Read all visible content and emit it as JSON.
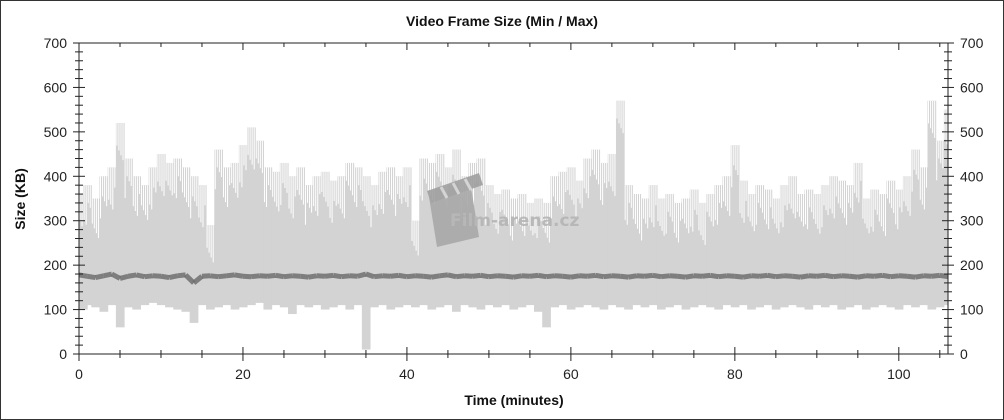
{
  "chart_data": {
    "type": "area",
    "title": "Video Frame Size (Min / Max)",
    "xlabel": "Time (minutes)",
    "ylabel": "Size (KB)",
    "xlim": [
      0,
      106
    ],
    "ylim": [
      0,
      700
    ],
    "x_ticks": [
      0,
      20,
      40,
      60,
      80,
      100
    ],
    "y_ticks": [
      0,
      100,
      200,
      300,
      400,
      500,
      600,
      700
    ],
    "grid": false,
    "legend": "none",
    "watermark": "Film-arena.cz",
    "colors": {
      "range": "#d3d3d3",
      "line": "#6e6e6e"
    },
    "series": [
      {
        "role": "max",
        "values": [
          360,
          380,
          350,
          400,
          420,
          520,
          440,
          400,
          380,
          420,
          450,
          430,
          440,
          420,
          400,
          380,
          290,
          460,
          420,
          430,
          470,
          510,
          480,
          420,
          410,
          430,
          400,
          420,
          380,
          400,
          410,
          390,
          400,
          430,
          420,
          400,
          380,
          410,
          420,
          400,
          420,
          300,
          440,
          430,
          450,
          420,
          460,
          400,
          430,
          440,
          380,
          360,
          370,
          350,
          360,
          340,
          350,
          340,
          400,
          410,
          420,
          390,
          440,
          460,
          430,
          450,
          570,
          380,
          360,
          350,
          380,
          350,
          360,
          340,
          350,
          370,
          340,
          360,
          380,
          400,
          470,
          390,
          360,
          380,
          370,
          350,
          380,
          400,
          360,
          370,
          360,
          380,
          400,
          390,
          380,
          430,
          350,
          370,
          360,
          390,
          370,
          400,
          460,
          420,
          570,
          480,
          550
        ]
      },
      {
        "role": "min",
        "values": [
          100,
          110,
          105,
          95,
          110,
          60,
          105,
          100,
          110,
          115,
          110,
          105,
          100,
          95,
          70,
          110,
          100,
          105,
          110,
          100,
          105,
          110,
          115,
          100,
          110,
          105,
          90,
          110,
          105,
          110,
          100,
          105,
          110,
          100,
          110,
          10,
          105,
          110,
          100,
          105,
          110,
          105,
          110,
          100,
          105,
          110,
          95,
          110,
          105,
          100,
          110,
          105,
          110,
          100,
          105,
          110,
          95,
          60,
          105,
          110,
          100,
          105,
          110,
          105,
          100,
          110,
          105,
          100,
          110,
          105,
          110,
          100,
          105,
          110,
          100,
          105,
          110,
          105,
          100,
          110,
          105,
          110,
          100,
          105,
          110,
          100,
          105,
          110,
          105,
          100,
          110,
          105,
          110,
          100,
          105,
          110,
          100,
          105,
          110,
          105,
          100,
          110,
          105,
          110,
          100,
          105,
          110
        ]
      },
      {
        "values": [
          178,
          175,
          172,
          176,
          180,
          170,
          175,
          178,
          174,
          176,
          175,
          172,
          176,
          178,
          160,
          175,
          176,
          174,
          176,
          178,
          175,
          174,
          176,
          175,
          177,
          174,
          176,
          175,
          173,
          176,
          175,
          177,
          174,
          176,
          175,
          180,
          174,
          176,
          175,
          177,
          174,
          176,
          175,
          173,
          176,
          178,
          174,
          176,
          175,
          177,
          174,
          176,
          175,
          173,
          176,
          175,
          177,
          174,
          176,
          175,
          173,
          176,
          175,
          177,
          174,
          176,
          175,
          173,
          176,
          175,
          177,
          174,
          176,
          175,
          173,
          176,
          175,
          177,
          174,
          176,
          175,
          173,
          176,
          175,
          177,
          174,
          176,
          175,
          173,
          176,
          175,
          177,
          174,
          176,
          175,
          173,
          176,
          175,
          177,
          174,
          176,
          175,
          173,
          176,
          175,
          177,
          174
        ]
      }
    ]
  }
}
